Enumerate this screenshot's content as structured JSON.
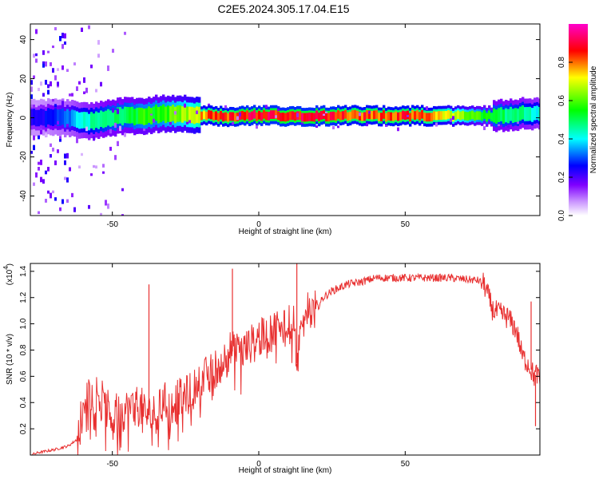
{
  "title": "C2E5.2024.305.17.04.E15",
  "chart_data": [
    {
      "type": "heatmap",
      "title": "C2E5.2024.305.17.04.E15",
      "xlabel": "Height of straight line (km)",
      "ylabel": "Frequency (Hz)",
      "xlim": [
        -78,
        96
      ],
      "ylim": [
        -50,
        48
      ],
      "x_ticks": [
        -50,
        0,
        50
      ],
      "y_ticks": [
        40,
        20,
        0,
        -20,
        -40
      ],
      "colorbar": {
        "label": "Normalized spectral amplitude",
        "range": [
          0,
          1
        ],
        "ticks": [
          0.0,
          0.2,
          0.4,
          0.6,
          0.8
        ],
        "tick_labels": [
          "0.0",
          "0.2",
          "0.4",
          "0.6",
          "0.8"
        ],
        "colors": [
          "#ffffff",
          "#cc99ff",
          "#7f00ff",
          "#0000ff",
          "#00ffff",
          "#00ff00",
          "#ffff00",
          "#ff0000",
          "#ff00cc"
        ]
      },
      "ridge": {
        "x": [
          -75,
          -70,
          -65,
          -60,
          -55,
          -50,
          -45,
          -40,
          -35,
          -30,
          -25,
          -20,
          -15,
          -10,
          -5,
          0,
          5,
          10,
          15,
          20,
          25,
          30,
          40,
          50,
          60,
          70,
          80,
          90,
          95
        ],
        "frequency": [
          0,
          0,
          0,
          -2,
          -1,
          0,
          1,
          1,
          2,
          2,
          2,
          1,
          1,
          0,
          1,
          1,
          1,
          1,
          1,
          1,
          1,
          1,
          1,
          1,
          1,
          1,
          1,
          2,
          2
        ],
        "amplitude": [
          0.25,
          0.3,
          0.35,
          0.45,
          0.5,
          0.55,
          0.55,
          0.6,
          0.6,
          0.65,
          0.7,
          0.8,
          0.9,
          0.9,
          0.95,
          0.95,
          0.95,
          0.95,
          0.95,
          0.95,
          0.95,
          0.9,
          0.9,
          0.9,
          0.85,
          0.7,
          0.55,
          0.5,
          0.45
        ]
      },
      "grid": false,
      "colors": {
        "frame": "#000000"
      }
    },
    {
      "type": "line",
      "xlabel": "Height of straight line (km)",
      "ylabel": "SNR (10 * v/v)",
      "y_multiplier": "(x10",
      "y_multiplier_exp": "4",
      "y_multiplier_close": ")",
      "xlim": [
        -78,
        96
      ],
      "ylim": [
        0.0,
        1.46
      ],
      "x_ticks": [
        -50,
        0,
        50
      ],
      "y_ticks": [
        0.2,
        0.4,
        0.6,
        0.8,
        1.0,
        1.2,
        1.4
      ],
      "y_tick_labels": [
        "0.2",
        "0.4",
        "0.6",
        "0.8",
        "1.0",
        "1.2",
        "1.4"
      ],
      "series": [
        {
          "color": "#e83030",
          "x": [
            -78,
            -75,
            -70,
            -65,
            -62,
            -60,
            -58,
            -55,
            -52,
            -50,
            -48,
            -45,
            -42,
            -40,
            -38,
            -35,
            -32,
            -30,
            -28,
            -25,
            -22,
            -20,
            -18,
            -15,
            -12,
            -10,
            -8,
            -5,
            -2,
            0,
            2,
            5,
            8,
            10,
            12,
            13,
            15,
            18,
            20,
            22,
            25,
            30,
            35,
            40,
            45,
            50,
            55,
            60,
            65,
            70,
            75,
            77,
            80,
            85,
            88,
            90,
            92,
            93,
            94,
            95,
            96
          ],
          "y": [
            0.0,
            0.02,
            0.04,
            0.07,
            0.12,
            0.35,
            0.45,
            0.48,
            0.35,
            0.3,
            0.32,
            0.35,
            0.38,
            0.36,
            0.3,
            0.32,
            0.4,
            0.38,
            0.42,
            0.45,
            0.5,
            0.55,
            0.6,
            0.65,
            0.72,
            0.8,
            0.78,
            0.8,
            0.85,
            0.9,
            0.88,
            0.95,
            1.0,
            1.05,
            0.98,
            0.7,
            1.1,
            1.1,
            1.12,
            1.2,
            1.25,
            1.3,
            1.32,
            1.35,
            1.35,
            1.35,
            1.35,
            1.35,
            1.35,
            1.34,
            1.33,
            1.3,
            1.1,
            1.05,
            0.95,
            0.75,
            0.7,
            0.65,
            0.6,
            0.62,
            0.55
          ],
          "spikes": [
            {
              "x": -37.5,
              "y": 1.3
            },
            {
              "x": -9,
              "y": 1.42
            },
            {
              "x": 13,
              "y": 1.46
            },
            {
              "x": 93,
              "y": 1.17
            },
            {
              "x": 94.5,
              "y": 0.22
            }
          ]
        }
      ],
      "grid": false,
      "colors": {
        "frame": "#000000"
      }
    }
  ]
}
